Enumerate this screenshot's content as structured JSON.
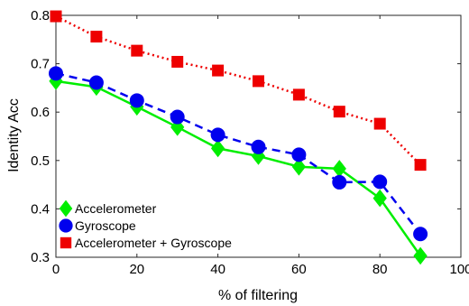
{
  "chart_data": {
    "type": "line",
    "title": "",
    "xlabel": "% of filtering",
    "ylabel": "Identity Acc",
    "xlim": [
      0,
      100
    ],
    "ylim": [
      0.3,
      0.8
    ],
    "xticks": [
      0,
      20,
      40,
      60,
      80,
      100
    ],
    "yticks": [
      0.3,
      0.4,
      0.5,
      0.6,
      0.7,
      0.8
    ],
    "xtick_labels": [
      "0",
      "20",
      "40",
      "60",
      "80",
      "100"
    ],
    "ytick_labels": [
      "0.3",
      "0.4",
      "0.5",
      "0.6",
      "0.7",
      "0.8"
    ],
    "grid": false,
    "legend_position": "bottom-left",
    "x": [
      0,
      10,
      20,
      30,
      40,
      50,
      60,
      70,
      80,
      90
    ],
    "series": [
      {
        "name": "Accelerometer",
        "values": [
          0.664,
          0.652,
          0.611,
          0.569,
          0.525,
          0.509,
          0.487,
          0.483,
          0.422,
          0.303
        ],
        "color": "#00ee00",
        "line_style": "solid",
        "marker": "diamond"
      },
      {
        "name": "Gyroscope",
        "values": [
          0.68,
          0.661,
          0.624,
          0.59,
          0.553,
          0.528,
          0.512,
          0.455,
          0.456,
          0.348
        ],
        "color": "#0000ee",
        "line_style": "dashed",
        "marker": "circle"
      },
      {
        "name": "Accelerometer + Gyroscope",
        "values": [
          0.798,
          0.756,
          0.727,
          0.704,
          0.686,
          0.664,
          0.636,
          0.601,
          0.576,
          0.491
        ],
        "color": "#ee0000",
        "line_style": "dotted",
        "marker": "square"
      }
    ]
  }
}
